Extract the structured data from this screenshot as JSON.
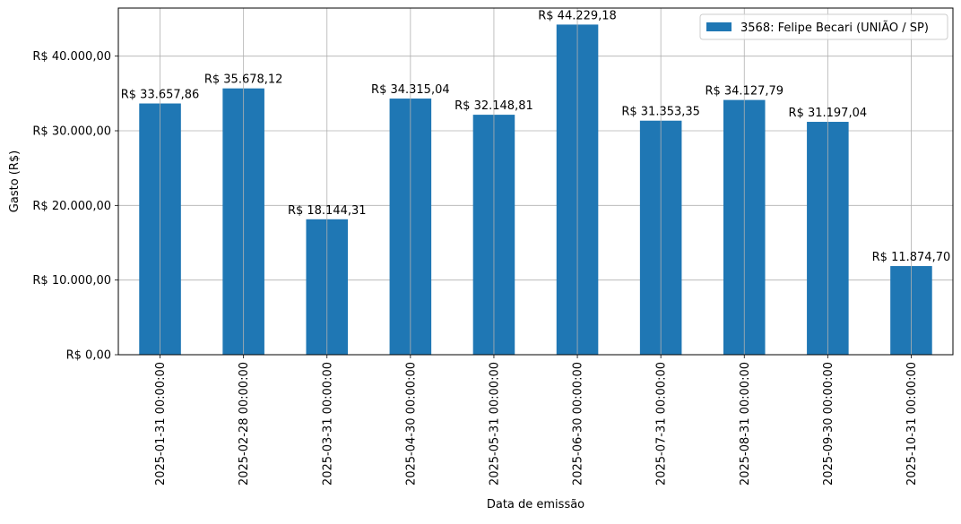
{
  "chart_data": {
    "type": "bar",
    "title": "",
    "xlabel": "Data de emissão",
    "ylabel": "Gasto (R$)",
    "ylim": [
      0,
      46440
    ],
    "y_ticks": [
      0,
      10000,
      20000,
      30000,
      40000
    ],
    "y_tick_labels": [
      "R$ 0,00",
      "R$ 10.000,00",
      "R$ 20.000,00",
      "R$ 30.000,00",
      "R$ 40.000,00"
    ],
    "categories": [
      "2025-01-31 00:00:00",
      "2025-02-28 00:00:00",
      "2025-03-31 00:00:00",
      "2025-04-30 00:00:00",
      "2025-05-31 00:00:00",
      "2025-06-30 00:00:00",
      "2025-07-31 00:00:00",
      "2025-08-31 00:00:00",
      "2025-09-30 00:00:00",
      "2025-10-31 00:00:00"
    ],
    "series": [
      {
        "name": "3568: Felipe Becari (UNIÃO / SP)",
        "color": "#1f77b4",
        "values": [
          33657.86,
          35678.12,
          18144.31,
          34315.04,
          32148.81,
          44229.18,
          31353.35,
          34127.79,
          31197.04,
          11874.7
        ],
        "data_labels": [
          "R$ 33.657,86",
          "R$ 35.678,12",
          "R$ 18.144,31",
          "R$ 34.315,04",
          "R$ 32.148,81",
          "R$ 44.229,18",
          "R$ 31.353,35",
          "R$ 34.127,79",
          "R$ 31.197,04",
          "R$ 11.874,70"
        ]
      }
    ],
    "grid": true,
    "legend_position": "top-right"
  }
}
